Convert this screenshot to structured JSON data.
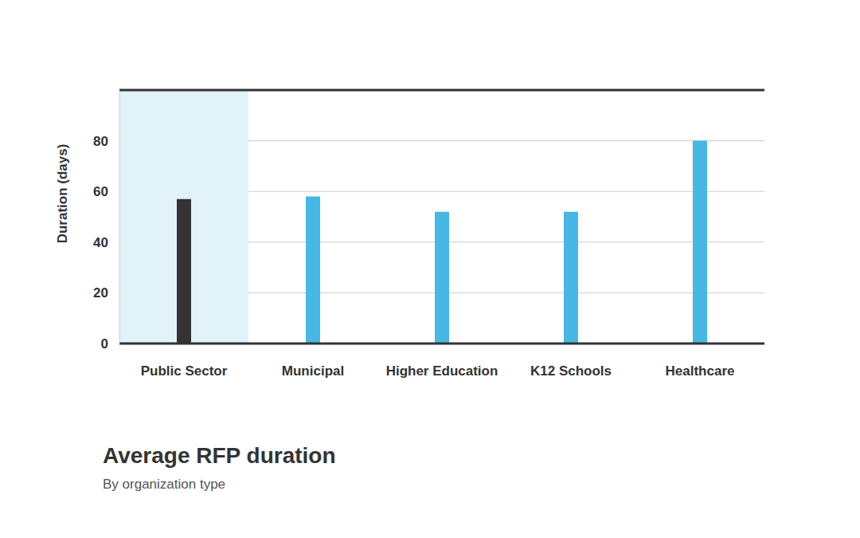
{
  "chart_data": {
    "type": "bar",
    "title": "Average RFP duration",
    "subtitle": "By organization type",
    "y_label": "Duration (days)",
    "categories": [
      "Public Sector",
      "Municipal",
      "Higher Education",
      "K12 Schools",
      "Healthcare"
    ],
    "values": [
      57,
      58,
      52,
      52,
      80
    ],
    "colors": [
      "#333333",
      "#47b7e4",
      "#47b7e4",
      "#47b7e4",
      "#47b7e4"
    ],
    "ylim": [
      0,
      100
    ],
    "yticks": [
      0,
      20,
      40,
      60,
      80
    ],
    "grid": true
  }
}
